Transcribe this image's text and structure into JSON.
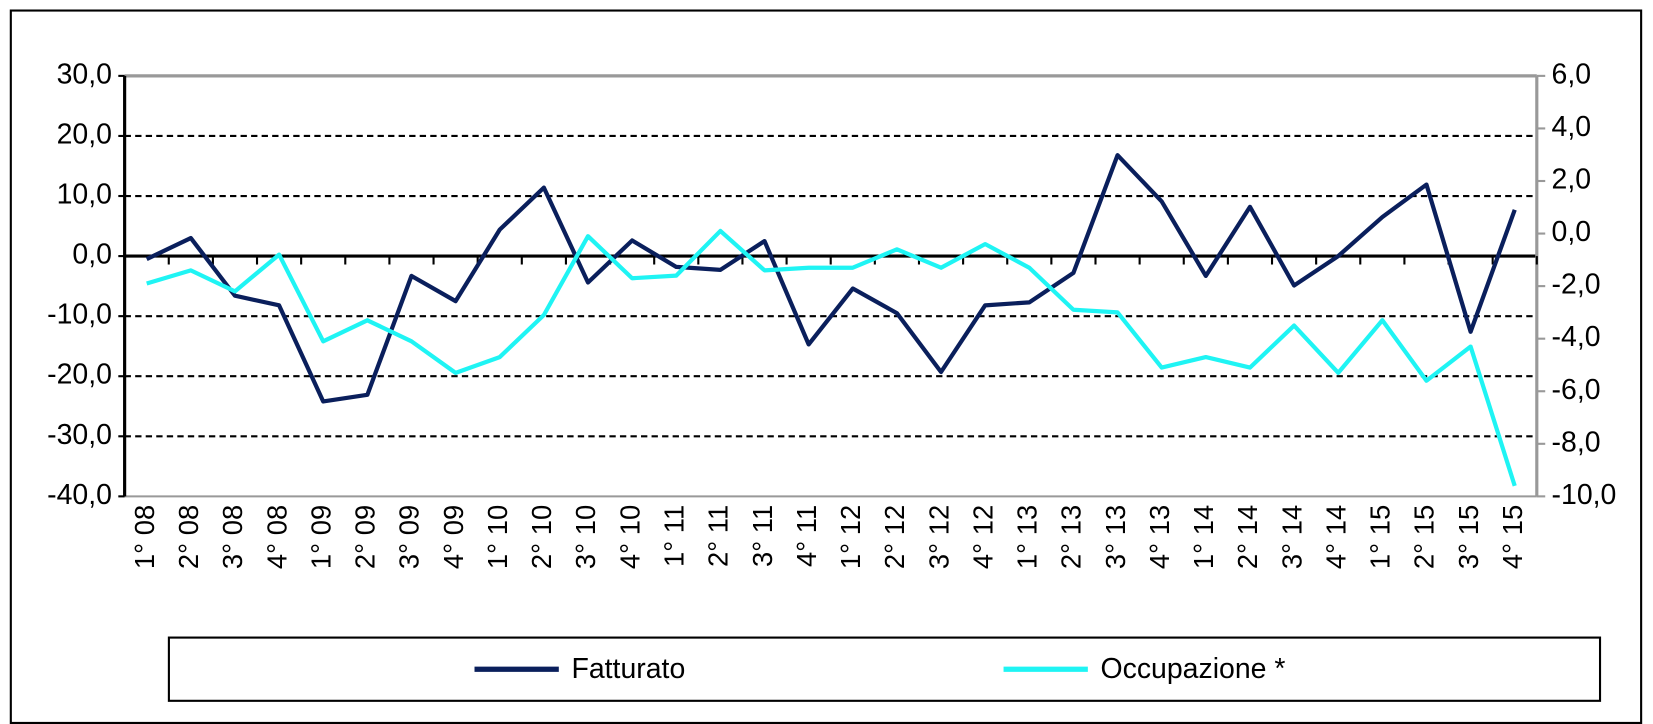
{
  "chart_data": {
    "type": "line",
    "categories": [
      "1° 08",
      "2° 08",
      "3° 08",
      "4° 08",
      "1° 09",
      "2° 09",
      "3° 09",
      "4° 09",
      "1° 10",
      "2° 10",
      "3° 10",
      "4° 10",
      "1° 11",
      "2° 11",
      "3° 11",
      "4° 11",
      "1° 12",
      "2° 12",
      "3° 12",
      "4° 12",
      "1° 13",
      "2° 13",
      "3° 13",
      "4° 13",
      "1° 14",
      "2° 14",
      "3° 14",
      "4° 14",
      "1° 15",
      "2° 15",
      "3° 15",
      "4° 15"
    ],
    "series": [
      {
        "name": "Fatturato",
        "color": "#0a1f5c",
        "values": [
          -0.5,
          3.0,
          -6.6,
          -8.2,
          -24.2,
          -23.1,
          -3.3,
          -7.5,
          4.4,
          11.4,
          -4.4,
          2.6,
          -1.8,
          -2.3,
          2.5,
          -14.7,
          -5.4,
          -9.5,
          -19.3,
          -8.2,
          -7.7,
          -2.8,
          16.8,
          9.1,
          -3.3,
          8.2,
          -4.9,
          0.0,
          6.5,
          11.9,
          -12.6,
          7.7
        ]
      },
      {
        "name": "Occupazione *",
        "color": "#1ff4f4",
        "axis": "y2",
        "values": [
          -1.9,
          -1.4,
          -2.2,
          -0.8,
          -4.1,
          -3.3,
          -4.1,
          -5.3,
          -4.7,
          -3.1,
          -0.1,
          -1.7,
          -1.6,
          0.1,
          -1.4,
          -1.3,
          -1.3,
          -0.6,
          -1.3,
          -0.4,
          -1.3,
          -2.9,
          -3.0,
          -5.1,
          -4.7,
          -5.1,
          -3.5,
          -5.3,
          -3.3,
          -5.6,
          -4.3,
          -9.6
        ]
      }
    ],
    "ylim": [
      -40,
      30
    ],
    "yticks": [
      {
        "value": -40,
        "label": "-40,0"
      },
      {
        "value": -30,
        "label": "-30,0"
      },
      {
        "value": -20,
        "label": "-20,0"
      },
      {
        "value": -10,
        "label": "-10,0"
      },
      {
        "value": 0,
        "label": "0,0"
      },
      {
        "value": 10,
        "label": "10,0"
      },
      {
        "value": 20,
        "label": "20,0"
      },
      {
        "value": 30,
        "label": "30,0"
      }
    ],
    "y2lim": [
      -10,
      6
    ],
    "y2ticks": [
      {
        "value": -10,
        "label": "-10,0"
      },
      {
        "value": -8,
        "label": "-8,0"
      },
      {
        "value": -6,
        "label": "-6,0"
      },
      {
        "value": -4,
        "label": "-4,0"
      },
      {
        "value": -2,
        "label": "-2,0"
      },
      {
        "value": 0,
        "label": "0,0"
      },
      {
        "value": 2,
        "label": "2,0"
      },
      {
        "value": 4,
        "label": "4,0"
      },
      {
        "value": 6,
        "label": "6,0"
      }
    ],
    "grid": true
  }
}
